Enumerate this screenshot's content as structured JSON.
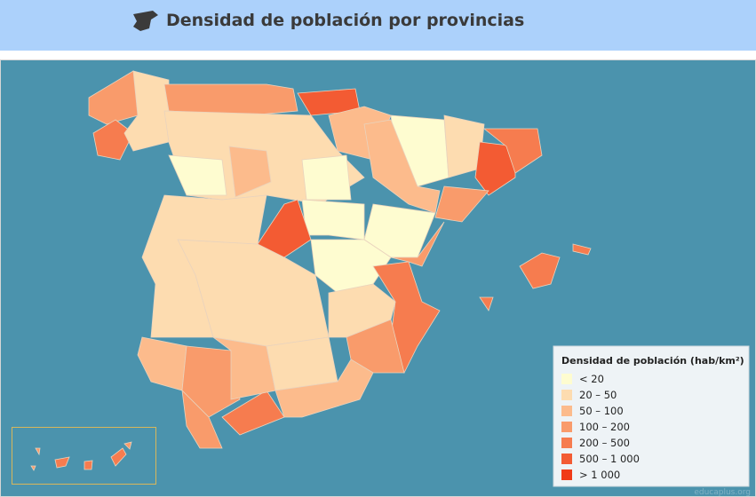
{
  "header": {
    "title": "Densidad de población por provincias"
  },
  "legend": {
    "title": "Densidad de población (hab/km²)",
    "items": [
      {
        "label": "< 20",
        "color": "#fefcd0"
      },
      {
        "label": "20 – 50",
        "color": "#fddcb0"
      },
      {
        "label": "50 – 100",
        "color": "#fcbb8c"
      },
      {
        "label": "100 – 200",
        "color": "#f99b6b"
      },
      {
        "label": "200 – 500",
        "color": "#f67c4f"
      },
      {
        "label": "500 – 1 000",
        "color": "#f35b33"
      },
      {
        "label": "> 1 000",
        "color": "#f03b17"
      }
    ]
  },
  "watermark": "educaplus.org"
}
